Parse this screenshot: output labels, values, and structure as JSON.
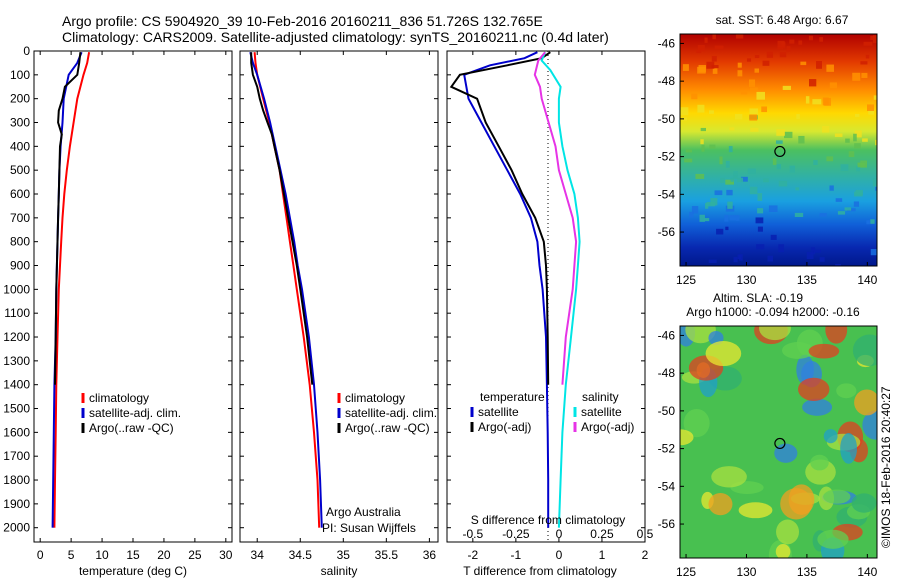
{
  "header": {
    "line1": "Argo profile: CS 5904920_39 10-Feb-2016 20160211_836 51.726S 132.765E",
    "line2": "Climatology: CARS2009. Satellite-adjusted climatology: synTS_20160211.nc (0.4d later)"
  },
  "colors": {
    "climatology": "#ff0000",
    "satellite": "#0000cc",
    "argo": "#000000",
    "sat_salinity": "#00e5e5",
    "argo_salinity": "#e633e6"
  },
  "chart_data": [
    {
      "type": "line",
      "panel": "temperature",
      "xlabel": "temperature (deg C)",
      "ylabel": "",
      "xlim": [
        -1,
        31
      ],
      "ylim": [
        2060,
        0
      ],
      "xticks": [
        "0",
        "5",
        "10",
        "15",
        "20",
        "25",
        "30"
      ],
      "yticks": [
        "0",
        "100",
        "200",
        "300",
        "400",
        "500",
        "600",
        "700",
        "800",
        "900",
        "1000",
        "1100",
        "1200",
        "1300",
        "1400",
        "1500",
        "1600",
        "1700",
        "1800",
        "1900",
        "2000"
      ],
      "legend": [
        "climatology",
        "satellite-adj. clim.",
        "Argo(..raw -QC)"
      ],
      "series": [
        {
          "name": "climatology",
          "depth": [
            5,
            50,
            100,
            200,
            300,
            400,
            500,
            600,
            700,
            800,
            900,
            1000,
            1200,
            1400,
            1600,
            1800,
            2000
          ],
          "values": [
            7.9,
            7.6,
            7.0,
            6.0,
            5.4,
            4.8,
            4.3,
            3.9,
            3.6,
            3.4,
            3.2,
            3.0,
            2.8,
            2.6,
            2.5,
            2.4,
            2.3
          ]
        },
        {
          "name": "satellite-adj. clim.",
          "depth": [
            5,
            50,
            100,
            200,
            300,
            400,
            500,
            600,
            700,
            800,
            900,
            1000,
            1200,
            1400,
            1600,
            1800,
            2000
          ],
          "values": [
            6.7,
            6.0,
            4.6,
            3.8,
            3.6,
            3.3,
            3.1,
            3.0,
            2.9,
            2.8,
            2.7,
            2.6,
            2.5,
            2.3,
            2.2,
            2.1,
            2.0
          ]
        },
        {
          "name": "Argo(..raw -QC)",
          "depth": [
            5,
            50,
            100,
            150,
            200,
            250,
            300,
            350,
            400,
            500,
            600,
            700,
            800,
            900,
            1000,
            1200,
            1400
          ],
          "values": [
            6.5,
            6.3,
            6.0,
            4.0,
            3.6,
            3.0,
            2.9,
            3.5,
            3.2,
            3.1,
            3.0,
            2.9,
            2.8,
            2.7,
            2.6,
            2.5,
            2.4
          ]
        }
      ]
    },
    {
      "type": "line",
      "panel": "salinity",
      "xlabel": "salinity",
      "xlim": [
        33.8,
        36.1
      ],
      "ylim": [
        2060,
        0
      ],
      "xticks": [
        "34",
        "34.5",
        "35",
        "35.5",
        "36"
      ],
      "legend": [
        "climatology",
        "satellite-adj. clim.",
        "Argo(..raw -QC)"
      ],
      "annotations": [
        "Argo Australia",
        "PI: Susan Wijffels"
      ],
      "series": [
        {
          "name": "climatology",
          "depth": [
            5,
            50,
            100,
            200,
            300,
            400,
            500,
            600,
            700,
            800,
            900,
            1000,
            1200,
            1400,
            1600,
            1800,
            2000
          ],
          "values": [
            33.97,
            33.98,
            34.0,
            34.07,
            34.14,
            34.2,
            34.26,
            34.3,
            34.34,
            34.38,
            34.42,
            34.46,
            34.54,
            34.61,
            34.66,
            34.7,
            34.72
          ]
        },
        {
          "name": "satellite-adj. clim.",
          "depth": [
            5,
            50,
            100,
            200,
            300,
            400,
            500,
            600,
            700,
            800,
            900,
            1000,
            1200,
            1400,
            1600,
            1800,
            2000
          ],
          "values": [
            33.92,
            33.95,
            34.0,
            34.08,
            34.15,
            34.21,
            34.27,
            34.33,
            34.38,
            34.43,
            34.47,
            34.52,
            34.6,
            34.66,
            34.7,
            34.73,
            34.75
          ]
        },
        {
          "name": "Argo(..raw -QC)",
          "depth": [
            5,
            50,
            100,
            150,
            200,
            250,
            300,
            350,
            400,
            500,
            600,
            700,
            800,
            900,
            1000,
            1200,
            1400
          ],
          "values": [
            33.93,
            33.93,
            33.95,
            34.0,
            34.03,
            34.07,
            34.12,
            34.17,
            34.2,
            34.26,
            34.31,
            34.36,
            34.41,
            34.46,
            34.5,
            34.58,
            34.64
          ]
        }
      ]
    },
    {
      "type": "line",
      "panel": "difference",
      "xlabel": "T difference from climatology",
      "xlabel_top": "S difference from climatology",
      "xlim": [
        -2.6,
        2.0
      ],
      "ylim": [
        2060,
        0
      ],
      "xticks": [
        "-2",
        "-1",
        "0",
        "1",
        "2"
      ],
      "xticks_top": [
        "-0.5",
        "-0.25",
        "0",
        "0.25",
        "0.5"
      ],
      "legend_titles": [
        "temperature",
        "salinity"
      ],
      "legend": [
        "satellite",
        "Argo(-adj)",
        "satellite",
        "Argo(-adj)"
      ],
      "series": [
        {
          "name": "satellite",
          "depth": [
            5,
            30,
            60,
            100,
            200,
            300,
            400,
            500,
            600,
            700,
            800,
            900,
            1000,
            1200,
            1400,
            1600,
            1800,
            2000
          ],
          "values": [
            -0.5,
            -0.8,
            -1.6,
            -2.2,
            -2.1,
            -1.8,
            -1.5,
            -1.2,
            -0.9,
            -0.65,
            -0.5,
            -0.45,
            -0.38,
            -0.3,
            -0.28,
            -0.26,
            -0.25,
            -0.25
          ]
        },
        {
          "name": "Argo(-adj)",
          "depth": [
            5,
            30,
            60,
            100,
            150,
            200,
            300,
            400,
            500,
            600,
            700,
            800,
            900,
            1000,
            1200,
            1400
          ],
          "values": [
            -0.2,
            -0.4,
            -1.2,
            -2.3,
            -2.5,
            -1.9,
            -1.7,
            -1.4,
            -1.1,
            -0.85,
            -0.55,
            -0.35,
            -0.3,
            -0.28,
            -0.26,
            -0.25
          ]
        },
        {
          "name": "satellite",
          "depth": [
            5,
            40,
            80,
            150,
            200,
            300,
            400,
            500,
            600,
            700,
            800,
            900,
            1000,
            1200,
            1400,
            1600,
            1800,
            2000
          ],
          "values": [
            -0.08,
            -0.1,
            -0.05,
            0.01,
            0.0,
            0.0,
            0.02,
            0.05,
            0.09,
            0.11,
            0.12,
            0.11,
            0.1,
            0.07,
            0.04,
            0.02,
            0.01,
            0.0
          ]
        },
        {
          "name": "Argo(-adj)",
          "depth": [
            5,
            40,
            100,
            150,
            200,
            300,
            400,
            500,
            600,
            700,
            800,
            900,
            1000,
            1200,
            1400
          ],
          "values": [
            -0.08,
            -0.12,
            -0.14,
            -0.11,
            -0.1,
            -0.06,
            -0.02,
            0.0,
            0.04,
            0.08,
            0.1,
            0.09,
            0.08,
            0.04,
            0.02
          ]
        }
      ]
    },
    {
      "type": "heatmap",
      "panel": "sst-map",
      "title": "sat. SST: 6.48 Argo: 6.67",
      "xlim": [
        124.5,
        140.8
      ],
      "ylim": [
        -57.8,
        -45.5
      ],
      "xticks": [
        "125",
        "130",
        "135",
        "140"
      ],
      "yticks": [
        "-46",
        "-48",
        "-50",
        "-52",
        "-54",
        "-56"
      ],
      "marker": {
        "lon": 132.765,
        "lat": -51.726
      }
    },
    {
      "type": "heatmap",
      "panel": "sla-map",
      "title_line1": "Altim. SLA: -0.19",
      "title_line2": "Argo h1000: -0.094 h2000: -0.16",
      "xlim": [
        124.5,
        140.8
      ],
      "ylim": [
        -57.8,
        -45.5
      ],
      "xticks": [
        "125",
        "130",
        "135",
        "140"
      ],
      "yticks": [
        "-46",
        "-48",
        "-50",
        "-52",
        "-54",
        "-56"
      ],
      "marker": {
        "lon": 132.765,
        "lat": -51.726
      }
    }
  ],
  "credit": "©IMOS 18-Feb-2016 20:40:27"
}
